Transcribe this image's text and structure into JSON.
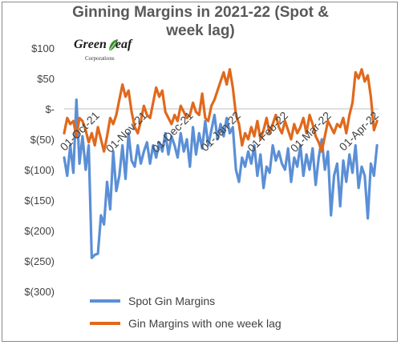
{
  "chart_data": {
    "type": "line",
    "title": "Ginning Margins in 2021-22 (Spot & week lag)",
    "title_lines": [
      "Ginning Margins in 2021-22 (Spot &",
      "week lag)"
    ],
    "logo": {
      "name_left": "Green",
      "name_right": "eaf",
      "sub": "Corporations"
    },
    "ylim": [
      -300,
      100
    ],
    "y_ticks": [
      100,
      50,
      0,
      -50,
      -100,
      -150,
      -200,
      -250,
      -300
    ],
    "y_tick_labels": [
      "$100",
      "$50",
      "$-",
      "$(50)",
      "$(100)",
      "$(150)",
      "$(200)",
      "$(250)",
      "$(300)"
    ],
    "x_range": [
      "2021-09-29",
      "2022-04-22"
    ],
    "x_ticks": [
      "2021-10-01",
      "2021-11-01",
      "2021-12-01",
      "2022-01-01",
      "2022-02-01",
      "2022-03-01",
      "2022-04-01"
    ],
    "x_tick_labels": [
      "01-Oct-21",
      "01-Nov-21",
      "01-Dec-21",
      "01-Jan-22",
      "01-Feb-22",
      "01-Mar-22",
      "01-Apr-22"
    ],
    "legend_position": "bottom",
    "grid": false,
    "series": [
      {
        "name": "Spot Gin Margins",
        "color": "#5b8fd6",
        "points": [
          [
            "2021-09-29",
            -80
          ],
          [
            "2021-10-01",
            -110
          ],
          [
            "2021-10-03",
            -60
          ],
          [
            "2021-10-05",
            -105
          ],
          [
            "2021-10-07",
            15
          ],
          [
            "2021-10-09",
            -90
          ],
          [
            "2021-10-11",
            -45
          ],
          [
            "2021-10-13",
            -100
          ],
          [
            "2021-10-15",
            -60
          ],
          [
            "2021-10-17",
            -245
          ],
          [
            "2021-10-19",
            -240
          ],
          [
            "2021-10-21",
            -238
          ],
          [
            "2021-10-23",
            -175
          ],
          [
            "2021-10-25",
            -190
          ],
          [
            "2021-10-27",
            -120
          ],
          [
            "2021-10-29",
            -165
          ],
          [
            "2021-10-31",
            -70
          ],
          [
            "2021-11-02",
            -135
          ],
          [
            "2021-11-04",
            -110
          ],
          [
            "2021-11-06",
            -60
          ],
          [
            "2021-11-08",
            -115
          ],
          [
            "2021-11-10",
            -40
          ],
          [
            "2021-11-12",
            -85
          ],
          [
            "2021-11-14",
            -95
          ],
          [
            "2021-11-16",
            -60
          ],
          [
            "2021-11-18",
            -90
          ],
          [
            "2021-11-20",
            -70
          ],
          [
            "2021-11-22",
            -55
          ],
          [
            "2021-11-24",
            -90
          ],
          [
            "2021-11-26",
            -60
          ],
          [
            "2021-11-28",
            -80
          ],
          [
            "2021-11-30",
            -55
          ],
          [
            "2021-12-02",
            -70
          ],
          [
            "2021-12-04",
            -40
          ],
          [
            "2021-12-06",
            -75
          ],
          [
            "2021-12-08",
            -45
          ],
          [
            "2021-12-10",
            -60
          ],
          [
            "2021-12-12",
            -80
          ],
          [
            "2021-12-14",
            -40
          ],
          [
            "2021-12-16",
            -70
          ],
          [
            "2021-12-18",
            -50
          ],
          [
            "2021-12-20",
            -95
          ],
          [
            "2021-12-22",
            -30
          ],
          [
            "2021-12-24",
            -75
          ],
          [
            "2021-12-26",
            -40
          ],
          [
            "2021-12-28",
            -65
          ],
          [
            "2021-12-30",
            -20
          ],
          [
            "2022-01-01",
            -60
          ],
          [
            "2022-01-03",
            -35
          ],
          [
            "2022-01-05",
            -10
          ],
          [
            "2022-01-07",
            -50
          ],
          [
            "2022-01-09",
            -25
          ],
          [
            "2022-01-11",
            -45
          ],
          [
            "2022-01-13",
            -15
          ],
          [
            "2022-01-15",
            -40
          ],
          [
            "2022-01-17",
            -30
          ],
          [
            "2022-01-19",
            -100
          ],
          [
            "2022-01-21",
            -120
          ],
          [
            "2022-01-23",
            -80
          ],
          [
            "2022-01-25",
            -95
          ],
          [
            "2022-01-27",
            -70
          ],
          [
            "2022-01-29",
            -90
          ],
          [
            "2022-01-31",
            -60
          ],
          [
            "2022-02-02",
            -110
          ],
          [
            "2022-02-04",
            -75
          ],
          [
            "2022-02-06",
            -130
          ],
          [
            "2022-02-08",
            -95
          ],
          [
            "2022-02-10",
            -105
          ],
          [
            "2022-02-12",
            -60
          ],
          [
            "2022-02-14",
            -85
          ],
          [
            "2022-02-16",
            -70
          ],
          [
            "2022-02-18",
            -90
          ],
          [
            "2022-02-20",
            -100
          ],
          [
            "2022-02-22",
            -65
          ],
          [
            "2022-02-24",
            -120
          ],
          [
            "2022-02-26",
            -80
          ],
          [
            "2022-02-28",
            -95
          ],
          [
            "2022-03-02",
            -60
          ],
          [
            "2022-03-04",
            -110
          ],
          [
            "2022-03-06",
            -75
          ],
          [
            "2022-03-08",
            -100
          ],
          [
            "2022-03-10",
            -65
          ],
          [
            "2022-03-12",
            -125
          ],
          [
            "2022-03-14",
            -80
          ],
          [
            "2022-03-16",
            -50
          ],
          [
            "2022-03-18",
            -100
          ],
          [
            "2022-03-20",
            -70
          ],
          [
            "2022-03-22",
            -175
          ],
          [
            "2022-03-24",
            -110
          ],
          [
            "2022-03-26",
            -90
          ],
          [
            "2022-03-28",
            -160
          ],
          [
            "2022-03-30",
            -85
          ],
          [
            "2022-04-01",
            -120
          ],
          [
            "2022-04-03",
            -75
          ],
          [
            "2022-04-05",
            -105
          ],
          [
            "2022-04-07",
            -60
          ],
          [
            "2022-04-09",
            -130
          ],
          [
            "2022-04-11",
            -95
          ],
          [
            "2022-04-13",
            -110
          ],
          [
            "2022-04-15",
            -180
          ],
          [
            "2022-04-17",
            -90
          ],
          [
            "2022-04-19",
            -110
          ],
          [
            "2022-04-21",
            -60
          ]
        ]
      },
      {
        "name": "Gin Margins with one week lag",
        "color": "#e0691c",
        "points": [
          [
            "2021-09-29",
            -40
          ],
          [
            "2021-10-01",
            -15
          ],
          [
            "2021-10-03",
            -25
          ],
          [
            "2021-10-05",
            -20
          ],
          [
            "2021-10-07",
            -45
          ],
          [
            "2021-10-09",
            -15
          ],
          [
            "2021-10-11",
            -20
          ],
          [
            "2021-10-13",
            -35
          ],
          [
            "2021-10-15",
            -55
          ],
          [
            "2021-10-17",
            -40
          ],
          [
            "2021-10-19",
            -60
          ],
          [
            "2021-10-21",
            -30
          ],
          [
            "2021-10-23",
            -50
          ],
          [
            "2021-10-25",
            -70
          ],
          [
            "2021-10-27",
            -45
          ],
          [
            "2021-10-29",
            -15
          ],
          [
            "2021-10-31",
            -25
          ],
          [
            "2021-11-02",
            -10
          ],
          [
            "2021-11-04",
            15
          ],
          [
            "2021-11-06",
            40
          ],
          [
            "2021-11-08",
            20
          ],
          [
            "2021-11-10",
            30
          ],
          [
            "2021-11-12",
            -5
          ],
          [
            "2021-11-14",
            -30
          ],
          [
            "2021-11-16",
            -40
          ],
          [
            "2021-11-18",
            -20
          ],
          [
            "2021-11-20",
            5
          ],
          [
            "2021-11-22",
            -10
          ],
          [
            "2021-11-24",
            -15
          ],
          [
            "2021-11-26",
            10
          ],
          [
            "2021-11-28",
            35
          ],
          [
            "2021-11-30",
            20
          ],
          [
            "2021-12-02",
            30
          ],
          [
            "2021-12-04",
            -5
          ],
          [
            "2021-12-06",
            -15
          ],
          [
            "2021-12-08",
            -25
          ],
          [
            "2021-12-10",
            -10
          ],
          [
            "2021-12-12",
            -20
          ],
          [
            "2021-12-14",
            5
          ],
          [
            "2021-12-16",
            -5
          ],
          [
            "2021-12-18",
            -15
          ],
          [
            "2021-12-20",
            -10
          ],
          [
            "2021-12-22",
            10
          ],
          [
            "2021-12-24",
            -5
          ],
          [
            "2021-12-26",
            -10
          ],
          [
            "2021-12-28",
            25
          ],
          [
            "2021-12-30",
            -15
          ],
          [
            "2022-01-01",
            -20
          ],
          [
            "2022-01-03",
            5
          ],
          [
            "2022-01-05",
            15
          ],
          [
            "2022-01-07",
            30
          ],
          [
            "2022-01-09",
            45
          ],
          [
            "2022-01-11",
            60
          ],
          [
            "2022-01-13",
            40
          ],
          [
            "2022-01-15",
            65
          ],
          [
            "2022-01-17",
            35
          ],
          [
            "2022-01-19",
            -10
          ],
          [
            "2022-01-21",
            -25
          ],
          [
            "2022-01-23",
            -60
          ],
          [
            "2022-01-25",
            -40
          ],
          [
            "2022-01-27",
            -50
          ],
          [
            "2022-01-29",
            -30
          ],
          [
            "2022-01-31",
            -45
          ],
          [
            "2022-02-02",
            -20
          ],
          [
            "2022-02-04",
            -50
          ],
          [
            "2022-02-06",
            -35
          ],
          [
            "2022-02-08",
            -15
          ],
          [
            "2022-02-10",
            -40
          ],
          [
            "2022-02-12",
            -25
          ],
          [
            "2022-02-14",
            -10
          ],
          [
            "2022-02-16",
            -30
          ],
          [
            "2022-02-18",
            -40
          ],
          [
            "2022-02-20",
            -20
          ],
          [
            "2022-02-22",
            -35
          ],
          [
            "2022-02-24",
            -50
          ],
          [
            "2022-02-26",
            -25
          ],
          [
            "2022-02-28",
            -40
          ],
          [
            "2022-03-02",
            -30
          ],
          [
            "2022-03-04",
            -15
          ],
          [
            "2022-03-06",
            -40
          ],
          [
            "2022-03-08",
            -10
          ],
          [
            "2022-03-10",
            -25
          ],
          [
            "2022-03-12",
            -45
          ],
          [
            "2022-03-14",
            -55
          ],
          [
            "2022-03-16",
            -70
          ],
          [
            "2022-03-18",
            -45
          ],
          [
            "2022-03-20",
            -20
          ],
          [
            "2022-03-22",
            -30
          ],
          [
            "2022-03-24",
            -40
          ],
          [
            "2022-03-26",
            -25
          ],
          [
            "2022-03-28",
            -30
          ],
          [
            "2022-03-30",
            -15
          ],
          [
            "2022-04-01",
            -40
          ],
          [
            "2022-04-03",
            -10
          ],
          [
            "2022-04-05",
            10
          ],
          [
            "2022-04-07",
            60
          ],
          [
            "2022-04-09",
            50
          ],
          [
            "2022-04-11",
            65
          ],
          [
            "2022-04-13",
            45
          ],
          [
            "2022-04-15",
            55
          ],
          [
            "2022-04-17",
            20
          ],
          [
            "2022-04-19",
            -35
          ],
          [
            "2022-04-21",
            -20
          ]
        ]
      }
    ]
  }
}
